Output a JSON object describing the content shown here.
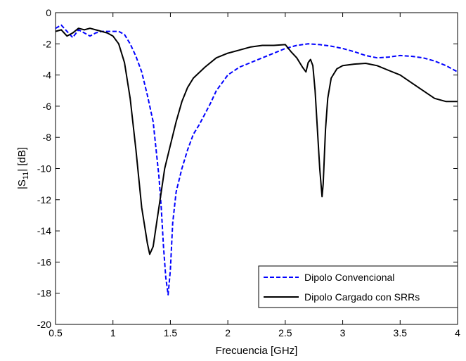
{
  "chart_data": {
    "type": "line",
    "xlabel": "Frecuencia [GHz]",
    "ylabel": {
      "prefix": "|S",
      "sub": "11",
      "suffix": "| [dB]"
    },
    "xlim": [
      0.5,
      4
    ],
    "ylim": [
      -20,
      0
    ],
    "xticks": [
      0.5,
      1,
      1.5,
      2,
      2.5,
      3,
      3.5,
      4
    ],
    "xtick_labels": [
      "0.5",
      "1",
      "1.5",
      "2",
      "2.5",
      "3",
      "3.5",
      "4"
    ],
    "yticks": [
      0,
      -2,
      -4,
      -6,
      -8,
      -10,
      -12,
      -14,
      -16,
      -18,
      -20
    ],
    "ytick_labels": [
      "0",
      "-2",
      "-4",
      "-6",
      "-8",
      "-10",
      "-12",
      "-14",
      "-16",
      "-18",
      "-20"
    ],
    "grid": false,
    "legend_position": "bottom-right",
    "series": [
      {
        "name": "Dipolo Convencional",
        "color": "#0000ff",
        "dash": "dashed",
        "x": [
          0.5,
          0.55,
          0.6,
          0.65,
          0.7,
          0.75,
          0.8,
          0.85,
          0.9,
          0.95,
          1.0,
          1.05,
          1.1,
          1.15,
          1.2,
          1.25,
          1.3,
          1.35,
          1.4,
          1.42,
          1.44,
          1.46,
          1.48,
          1.5,
          1.52,
          1.55,
          1.6,
          1.65,
          1.7,
          1.75,
          1.8,
          1.85,
          1.9,
          1.95,
          2.0,
          2.1,
          2.2,
          2.3,
          2.4,
          2.5,
          2.6,
          2.7,
          2.8,
          2.9,
          3.0,
          3.1,
          3.2,
          3.3,
          3.4,
          3.5,
          3.6,
          3.7,
          3.8,
          3.9,
          4.0
        ],
        "y": [
          -1.0,
          -0.8,
          -1.2,
          -1.6,
          -1.1,
          -1.3,
          -1.5,
          -1.3,
          -1.2,
          -1.2,
          -1.2,
          -1.2,
          -1.4,
          -2.0,
          -2.8,
          -3.8,
          -5.3,
          -7.0,
          -10.5,
          -12.5,
          -15.0,
          -17.0,
          -18.1,
          -16.5,
          -13.5,
          -11.5,
          -10.0,
          -8.8,
          -7.8,
          -7.2,
          -6.5,
          -5.8,
          -5.0,
          -4.5,
          -4.0,
          -3.5,
          -3.2,
          -2.9,
          -2.6,
          -2.3,
          -2.1,
          -2.0,
          -2.05,
          -2.15,
          -2.3,
          -2.5,
          -2.75,
          -2.9,
          -2.85,
          -2.75,
          -2.8,
          -2.9,
          -3.1,
          -3.4,
          -3.8
        ]
      },
      {
        "name": "Dipolo Cargado con SRRs",
        "color": "#000000",
        "dash": "solid",
        "x": [
          0.5,
          0.55,
          0.6,
          0.65,
          0.7,
          0.75,
          0.8,
          0.85,
          0.9,
          0.95,
          1.0,
          1.05,
          1.1,
          1.15,
          1.2,
          1.25,
          1.3,
          1.32,
          1.35,
          1.38,
          1.42,
          1.45,
          1.5,
          1.55,
          1.6,
          1.65,
          1.7,
          1.8,
          1.9,
          2.0,
          2.1,
          2.2,
          2.3,
          2.4,
          2.5,
          2.55,
          2.6,
          2.65,
          2.68,
          2.7,
          2.72,
          2.74,
          2.76,
          2.78,
          2.8,
          2.82,
          2.83,
          2.85,
          2.87,
          2.9,
          2.95,
          3.0,
          3.1,
          3.2,
          3.3,
          3.4,
          3.5,
          3.6,
          3.7,
          3.8,
          3.9,
          4.0
        ],
        "y": [
          -1.2,
          -1.1,
          -1.5,
          -1.3,
          -1.0,
          -1.1,
          -1.0,
          -1.1,
          -1.2,
          -1.3,
          -1.5,
          -2.0,
          -3.2,
          -5.5,
          -8.8,
          -12.5,
          -14.8,
          -15.5,
          -15.0,
          -13.5,
          -11.5,
          -10.0,
          -8.5,
          -7.0,
          -5.7,
          -4.8,
          -4.2,
          -3.5,
          -2.9,
          -2.6,
          -2.4,
          -2.2,
          -2.1,
          -2.1,
          -2.05,
          -2.5,
          -2.9,
          -3.5,
          -3.8,
          -3.2,
          -3.0,
          -3.4,
          -5.0,
          -7.5,
          -10.0,
          -11.8,
          -11.0,
          -7.5,
          -5.5,
          -4.2,
          -3.6,
          -3.4,
          -3.3,
          -3.25,
          -3.4,
          -3.7,
          -4.0,
          -4.5,
          -5.0,
          -5.5,
          -5.7,
          -5.7
        ]
      }
    ]
  }
}
